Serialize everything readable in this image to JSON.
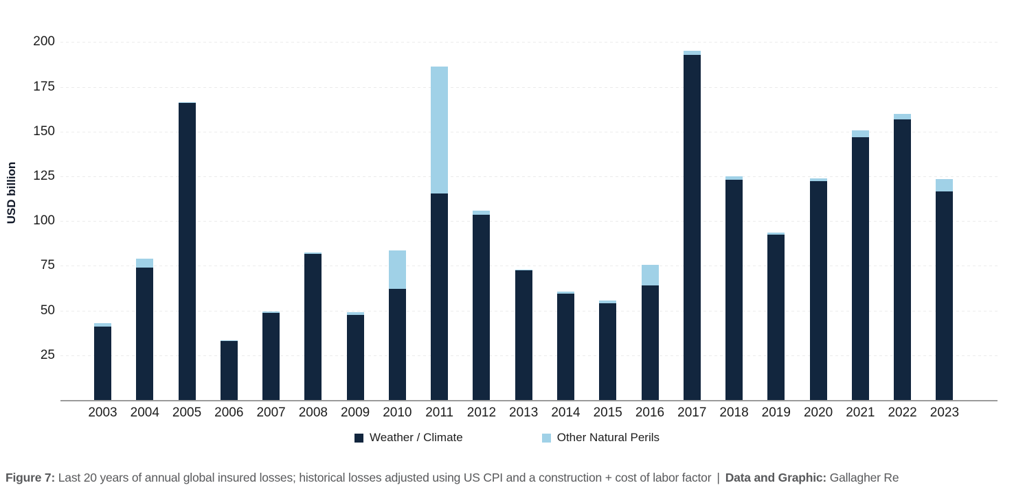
{
  "chart_data": {
    "type": "bar",
    "stacked": true,
    "ylabel": "USD billion",
    "xlabel": "",
    "ylim": [
      0,
      200
    ],
    "yticks": [
      25,
      50,
      75,
      100,
      125,
      150,
      175,
      200
    ],
    "grid": "horizontal-dashed-faint",
    "legend_position": "bottom-center",
    "categories": [
      "2003",
      "2004",
      "2005",
      "2006",
      "2007",
      "2008",
      "2009",
      "2010",
      "2011",
      "2012",
      "2013",
      "2014",
      "2015",
      "2016",
      "2017",
      "2018",
      "2019",
      "2020",
      "2021",
      "2022",
      "2023"
    ],
    "series": [
      {
        "name": "Weather / Climate",
        "color": "#12263e",
        "values": [
          41,
          74,
          166,
          33,
          48.5,
          81.5,
          47.5,
          62,
          115.5,
          103.5,
          72.5,
          59.5,
          54,
          64,
          193,
          123,
          92.5,
          122.5,
          147,
          157,
          116.5
        ]
      },
      {
        "name": "Other Natural Perils",
        "color": "#a0d1e7",
        "values": [
          2,
          5,
          0.5,
          0.5,
          1,
          1,
          1.5,
          21.5,
          71,
          2.5,
          0.5,
          1,
          1.5,
          11.5,
          2,
          2,
          1,
          1.5,
          3.5,
          3,
          7
        ]
      }
    ],
    "stacked_totals": [
      43,
      79,
      166.5,
      33.5,
      49.5,
      82.5,
      49,
      83.5,
      186.5,
      106,
      73,
      60.5,
      55.5,
      75.5,
      195,
      125,
      93.5,
      124,
      150.5,
      160,
      123.5
    ]
  },
  "colors": {
    "background": "#ffffff",
    "axis_line": "#9a9a9a",
    "tick_text": "#1c1c1c",
    "caption_text": "#58595b",
    "gridline": "#ebebeb"
  },
  "caption": {
    "figure_label": "Figure 7:",
    "figure_text": " Last 20 years of annual global insured losses; historical losses adjusted using US CPI and a construction + cost of labor factor",
    "separator": "|",
    "credit_label": "Data and Graphic:",
    "credit_text": " Gallagher Re"
  }
}
